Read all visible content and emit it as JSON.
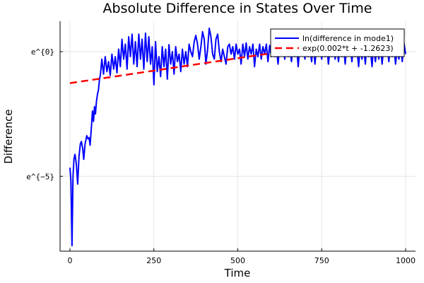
{
  "chart_data": {
    "type": "line",
    "title": "Absolute Difference in States Over Time",
    "xlabel": "Time",
    "ylabel": "Difference",
    "xlim": [
      -29.5,
      1029.5
    ],
    "ylim": [
      -8.0,
      1.22
    ],
    "xticks": [
      0,
      250,
      500,
      750,
      1000
    ],
    "xtick_labels": [
      "0",
      "250",
      "500",
      "750",
      "1000"
    ],
    "yticks": [
      0,
      -5
    ],
    "ytick_labels": [
      "e^{0}",
      "e^{−5}"
    ],
    "grid": true,
    "legend_position": "top-right",
    "series": [
      {
        "name": "ln(difference in mode1)",
        "color": "#0000ff",
        "style": "solid",
        "points": [
          [
            0,
            -4.65
          ],
          [
            3,
            -5.2
          ],
          [
            6,
            -7.78
          ],
          [
            9,
            -5.0
          ],
          [
            12,
            -4.3
          ],
          [
            15,
            -4.12
          ],
          [
            19,
            -4.5
          ],
          [
            23,
            -5.31
          ],
          [
            27,
            -4.2
          ],
          [
            31,
            -3.7
          ],
          [
            34,
            -3.6
          ],
          [
            38,
            -3.9
          ],
          [
            41,
            -4.32
          ],
          [
            45,
            -3.7
          ],
          [
            50,
            -3.37
          ],
          [
            54,
            -3.5
          ],
          [
            57,
            -3.45
          ],
          [
            60,
            -3.75
          ],
          [
            64,
            -3.0
          ],
          [
            67,
            -2.38
          ],
          [
            70,
            -2.8
          ],
          [
            73,
            -2.2
          ],
          [
            76,
            -2.5
          ],
          [
            79,
            -1.99
          ],
          [
            82,
            -1.7
          ],
          [
            85,
            -1.52
          ],
          [
            88,
            -1.1
          ],
          [
            91,
            -0.9
          ]
        ],
        "segments": [
          {
            "t0": 95,
            "step": 5,
            "y": [
              -0.3,
              -0.9,
              -0.2,
              -0.8,
              -0.4,
              -0.95,
              -0.1,
              -0.7,
              -0.2,
              -0.85
            ]
          },
          {
            "t0": 145,
            "step": 5,
            "y": [
              0.1,
              -0.6,
              0.5,
              -0.3,
              0.3,
              -0.7,
              0.6,
              -0.2,
              0.7,
              -0.5,
              0.4,
              -0.6,
              0.7,
              -0.3,
              0.5,
              -0.7,
              0.74,
              -0.4,
              0.6,
              -0.5,
              0.2,
              -1.33,
              0.4,
              -0.8
            ]
          },
          {
            "t0": 265,
            "step": 5,
            "y": [
              -0.2,
              -1.0,
              0.2,
              -0.6,
              0.1,
              -1.1,
              0.28,
              -0.5,
              0.0,
              -0.9,
              0.2,
              -0.4,
              -0.1,
              -0.8,
              0.1,
              -0.5,
              0.0,
              -0.6
            ]
          },
          {
            "t0": 355,
            "step": 5,
            "y": [
              0.3,
              0.0,
              -0.2,
              0.4,
              0.65,
              0.3,
              -0.3,
              0.2,
              0.8,
              0.5,
              -0.5,
              0.1,
              0.94,
              0.6,
              -0.1,
              -0.3,
              0.5,
              0.7,
              0.0,
              -0.4,
              0.1,
              -0.2,
              -0.5,
              0.2,
              0.3,
              -0.1
            ]
          },
          {
            "t0": 485,
            "step": 5,
            "y": [
              0.2,
              -0.3,
              0.3,
              -0.1,
              0.1,
              -0.5,
              0.3,
              -0.2,
              0.35,
              -0.3,
              0.2,
              -0.1,
              0.3,
              -0.6,
              0.1,
              -0.2,
              0.3,
              -0.3,
              0.2,
              -0.1,
              0.3,
              -0.4,
              0.25,
              -0.2
            ]
          },
          {
            "t0": 605,
            "step": 5,
            "y": [
              0.3,
              -0.2,
              0.1,
              -0.5,
              0.3,
              -0.1,
              0.2,
              -0.3,
              0.35,
              -0.2,
              0.1,
              -0.4,
              0.3,
              -0.2,
              0.2,
              -0.6,
              0.3,
              -0.1,
              0.25,
              -0.3,
              0.3,
              -0.2,
              0.1,
              -0.4,
              0.3,
              -0.5,
              0.2,
              -0.1,
              0.3,
              -0.3,
              0.2,
              -0.2,
              0.3,
              -0.5,
              0.1,
              -0.2,
              0.3,
              -0.3,
              0.2,
              -0.4
            ]
          },
          {
            "t0": 805,
            "step": 5,
            "y": [
              0.3,
              -0.2,
              0.2,
              -0.5,
              0.3,
              -0.1,
              0.25,
              -0.4,
              0.3,
              -0.2,
              0.1,
              -0.6,
              0.3,
              -0.3,
              0.2,
              -0.5,
              0.35,
              -0.2,
              0.1,
              -0.6,
              0.3,
              -0.4,
              0.2,
              -0.3,
              0.3,
              -0.5,
              0.2,
              -0.1,
              0.3,
              -0.4,
              0.25,
              -0.2,
              0.3,
              -0.5,
              0.1,
              -0.3,
              0.3,
              -0.4,
              0.35,
              -0.1
            ]
          }
        ]
      },
      {
        "name": "exp(0.002*t + -1.2623)",
        "color": "#ff0000",
        "style": "dashed",
        "slope": 0.002,
        "intercept": -1.2623,
        "t_range": [
          0,
          1000
        ]
      }
    ]
  }
}
